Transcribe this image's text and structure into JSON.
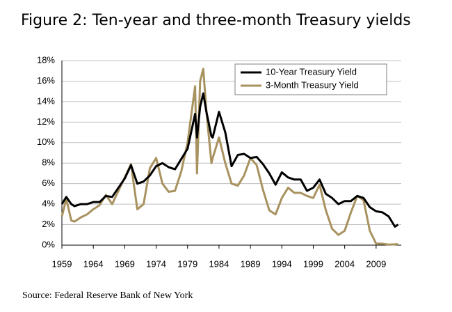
{
  "chart_data": {
    "type": "line",
    "title": "Figure 2: Ten-year and three-month Treasury yields",
    "source": "Source: Federal Reserve Bank of New York",
    "x": [
      1959,
      1959.7,
      1960.5,
      1961,
      1962,
      1963,
      1964,
      1965,
      1966,
      1967,
      1968,
      1969,
      1970,
      1971,
      1972,
      1973,
      1974,
      1975,
      1976,
      1977,
      1978,
      1979,
      1980.2,
      1980.5,
      1981,
      1981.5,
      1982,
      1982.8,
      1983,
      1984,
      1985,
      1986,
      1987,
      1988,
      1989,
      1990,
      1991,
      1992,
      1993,
      1994,
      1995,
      1996,
      1997,
      1998,
      1999,
      2000,
      2001,
      2002,
      2003,
      2004,
      2005,
      2006,
      2007,
      2008,
      2009,
      2010,
      2011,
      2012,
      2012.5
    ],
    "series": [
      {
        "name": "10-Year Treasury Yield",
        "color": "#000000",
        "values": [
          4.0,
          4.7,
          4.0,
          3.8,
          4.0,
          4.0,
          4.2,
          4.2,
          4.8,
          4.7,
          5.6,
          6.5,
          7.8,
          6.0,
          6.2,
          6.8,
          7.7,
          8.0,
          7.6,
          7.4,
          8.4,
          9.4,
          12.8,
          10.5,
          13.5,
          14.8,
          13.0,
          10.6,
          10.5,
          13.0,
          11.0,
          7.7,
          8.8,
          8.9,
          8.5,
          8.6,
          7.9,
          7.0,
          5.9,
          7.1,
          6.6,
          6.4,
          6.4,
          5.3,
          5.6,
          6.4,
          5.0,
          4.6,
          4.0,
          4.3,
          4.3,
          4.8,
          4.6,
          3.7,
          3.3,
          3.2,
          2.8,
          1.8,
          2.0
        ]
      },
      {
        "name": "3-Month Treasury Yield",
        "color": "#a8925f",
        "values": [
          2.8,
          4.5,
          2.4,
          2.3,
          2.7,
          3.0,
          3.5,
          3.9,
          4.9,
          4.0,
          5.3,
          6.6,
          7.9,
          3.5,
          4.0,
          7.5,
          8.5,
          6.0,
          5.2,
          5.3,
          7.2,
          10.0,
          15.5,
          7.0,
          16.0,
          17.2,
          13.0,
          8.0,
          8.5,
          10.5,
          8.0,
          6.0,
          5.8,
          6.8,
          8.5,
          7.8,
          5.4,
          3.4,
          3.0,
          4.6,
          5.6,
          5.1,
          5.1,
          4.8,
          4.6,
          5.9,
          3.4,
          1.6,
          1.0,
          1.4,
          3.2,
          4.8,
          4.4,
          1.4,
          0.15,
          0.14,
          0.05,
          0.08,
          0.1
        ]
      }
    ],
    "xlim": [
      1959,
      2013
    ],
    "xticks": [
      1959,
      1964,
      1969,
      1974,
      1979,
      1984,
      1989,
      1994,
      1999,
      2004,
      2009
    ],
    "ylim": [
      0,
      18
    ],
    "yticks": [
      {
        "value": 0,
        "label": "0%"
      },
      {
        "value": 2,
        "label": "2%"
      },
      {
        "value": 4,
        "label": "4%"
      },
      {
        "value": 6,
        "label": "6%"
      },
      {
        "value": 8,
        "label": "8%"
      },
      {
        "value": 10,
        "label": "10%"
      },
      {
        "value": 12,
        "label": "12%"
      },
      {
        "value": 14,
        "label": "14%"
      },
      {
        "value": 16,
        "label": "16%"
      },
      {
        "value": 18,
        "label": "18%"
      }
    ],
    "grid": true
  }
}
